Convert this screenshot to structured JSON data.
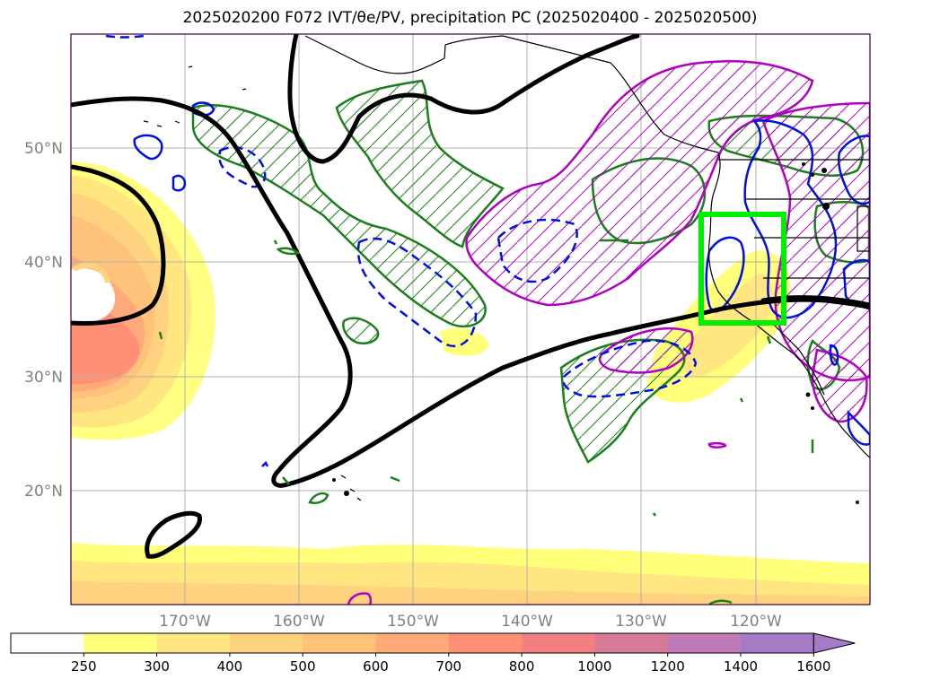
{
  "title": "2025020200 F072 IVT/θe/PV, precipitation PC (2025020400 - 2025020500)",
  "map": {
    "lat_ticks": [
      "50°N",
      "40°N",
      "30°N",
      "20°N"
    ],
    "lon_ticks": [
      "170°W",
      "160°W",
      "150°W",
      "140°W",
      "130°W",
      "120°W"
    ],
    "lat_range": [
      10,
      60
    ],
    "lon_range": [
      -180,
      -110
    ],
    "grid": true,
    "highlight_box": {
      "lat_range": [
        35,
        44
      ],
      "lon_range": [
        -125,
        -118
      ],
      "color": "#00ee00"
    }
  },
  "colors": {
    "black_contour": "#000000",
    "green_contour": "#1a7f1a",
    "magenta_contour": "#b000c0",
    "blue_contour": "#0010e0",
    "grid": "#b0b0b0",
    "tick_label": "#808080"
  },
  "colorbar": {
    "levels": [
      "250",
      "300",
      "400",
      "500",
      "600",
      "700",
      "800",
      "1000",
      "1200",
      "1400",
      "1600"
    ],
    "colors": [
      "#ffffff",
      "#ffff7a",
      "#ffe680",
      "#ffd280",
      "#ffc27a",
      "#ffaa78",
      "#ff9076",
      "#f28080",
      "#d77a98",
      "#c17ab8",
      "#a77ac8"
    ],
    "extend": "max"
  }
}
